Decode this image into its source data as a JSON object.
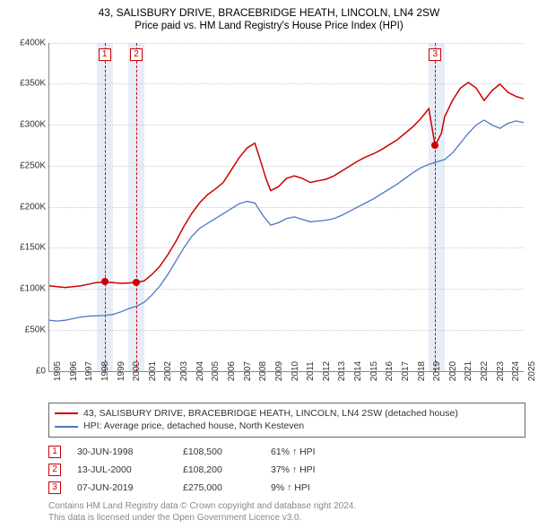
{
  "title": "43, SALISBURY DRIVE, BRACEBRIDGE HEATH, LINCOLN, LN4 2SW",
  "subtitle": "Price paid vs. HM Land Registry's House Price Index (HPI)",
  "chart": {
    "type": "line",
    "x_start_year": 1995,
    "x_end_year": 2025,
    "y_min": 0,
    "y_max": 400000,
    "y_tick_step": 50000,
    "y_tick_labels": [
      "£0",
      "£50K",
      "£100K",
      "£150K",
      "£200K",
      "£250K",
      "£300K",
      "£350K",
      "£400K"
    ],
    "x_tick_years": [
      1995,
      1996,
      1997,
      1998,
      1999,
      2000,
      2001,
      2002,
      2003,
      2004,
      2005,
      2006,
      2007,
      2008,
      2009,
      2010,
      2011,
      2012,
      2013,
      2014,
      2015,
      2016,
      2017,
      2018,
      2019,
      2020,
      2021,
      2022,
      2023,
      2024,
      2025
    ],
    "background_color": "#ffffff",
    "grid_color": "#cccccc",
    "axis_color": "#888888",
    "shade_color": "#e6edf7",
    "shades": [
      {
        "from_year": 1998,
        "to_year": 1999
      },
      {
        "from_year": 2000,
        "to_year": 2001
      },
      {
        "from_year": 2019,
        "to_year": 2020
      }
    ],
    "series": [
      {
        "id": "price_paid",
        "label": "43, SALISBURY DRIVE, BRACEBRIDGE HEATH, LINCOLN, LN4 2SW (detached house)",
        "color": "#cc0000",
        "line_width": 1.5,
        "values": [
          [
            1995.0,
            104000
          ],
          [
            1995.5,
            103000
          ],
          [
            1996.0,
            102000
          ],
          [
            1996.5,
            103000
          ],
          [
            1997.0,
            104000
          ],
          [
            1997.5,
            106000
          ],
          [
            1998.0,
            108000
          ],
          [
            1998.5,
            108500
          ],
          [
            1999.0,
            108000
          ],
          [
            1999.5,
            107000
          ],
          [
            2000.0,
            107500
          ],
          [
            2000.5,
            108200
          ],
          [
            2001.0,
            110000
          ],
          [
            2001.5,
            118000
          ],
          [
            2002.0,
            128000
          ],
          [
            2002.5,
            142000
          ],
          [
            2003.0,
            158000
          ],
          [
            2003.5,
            176000
          ],
          [
            2004.0,
            192000
          ],
          [
            2004.5,
            205000
          ],
          [
            2005.0,
            215000
          ],
          [
            2005.5,
            222000
          ],
          [
            2006.0,
            230000
          ],
          [
            2006.5,
            245000
          ],
          [
            2007.0,
            260000
          ],
          [
            2007.5,
            272000
          ],
          [
            2008.0,
            278000
          ],
          [
            2008.3,
            260000
          ],
          [
            2008.7,
            235000
          ],
          [
            2009.0,
            220000
          ],
          [
            2009.5,
            225000
          ],
          [
            2010.0,
            235000
          ],
          [
            2010.5,
            238000
          ],
          [
            2011.0,
            235000
          ],
          [
            2011.5,
            230000
          ],
          [
            2012.0,
            232000
          ],
          [
            2012.5,
            234000
          ],
          [
            2013.0,
            238000
          ],
          [
            2013.5,
            244000
          ],
          [
            2014.0,
            250000
          ],
          [
            2014.5,
            256000
          ],
          [
            2015.0,
            261000
          ],
          [
            2015.5,
            265000
          ],
          [
            2016.0,
            270000
          ],
          [
            2016.5,
            276000
          ],
          [
            2017.0,
            282000
          ],
          [
            2017.5,
            290000
          ],
          [
            2018.0,
            298000
          ],
          [
            2018.5,
            308000
          ],
          [
            2019.0,
            320000
          ],
          [
            2019.4,
            275000
          ],
          [
            2019.8,
            290000
          ],
          [
            2020.0,
            310000
          ],
          [
            2020.5,
            330000
          ],
          [
            2021.0,
            345000
          ],
          [
            2021.5,
            352000
          ],
          [
            2022.0,
            345000
          ],
          [
            2022.5,
            330000
          ],
          [
            2023.0,
            342000
          ],
          [
            2023.5,
            350000
          ],
          [
            2024.0,
            340000
          ],
          [
            2024.5,
            335000
          ],
          [
            2025.0,
            332000
          ]
        ]
      },
      {
        "id": "hpi",
        "label": "HPI: Average price, detached house, North Kesteven",
        "color": "#4a78c4",
        "line_width": 1.3,
        "values": [
          [
            1995.0,
            62000
          ],
          [
            1995.5,
            61000
          ],
          [
            1996.0,
            62000
          ],
          [
            1996.5,
            64000
          ],
          [
            1997.0,
            66000
          ],
          [
            1997.5,
            67000
          ],
          [
            1998.0,
            67500
          ],
          [
            1998.5,
            68000
          ],
          [
            1999.0,
            69000
          ],
          [
            1999.5,
            72000
          ],
          [
            2000.0,
            76000
          ],
          [
            2000.5,
            79000
          ],
          [
            2001.0,
            84000
          ],
          [
            2001.5,
            93000
          ],
          [
            2002.0,
            104000
          ],
          [
            2002.5,
            118000
          ],
          [
            2003.0,
            134000
          ],
          [
            2003.5,
            150000
          ],
          [
            2004.0,
            164000
          ],
          [
            2004.5,
            174000
          ],
          [
            2005.0,
            180000
          ],
          [
            2005.5,
            186000
          ],
          [
            2006.0,
            192000
          ],
          [
            2006.5,
            198000
          ],
          [
            2007.0,
            204000
          ],
          [
            2007.5,
            207000
          ],
          [
            2008.0,
            205000
          ],
          [
            2008.5,
            190000
          ],
          [
            2009.0,
            178000
          ],
          [
            2009.5,
            181000
          ],
          [
            2010.0,
            186000
          ],
          [
            2010.5,
            188000
          ],
          [
            2011.0,
            185000
          ],
          [
            2011.5,
            182000
          ],
          [
            2012.0,
            183000
          ],
          [
            2012.5,
            184000
          ],
          [
            2013.0,
            186000
          ],
          [
            2013.5,
            190000
          ],
          [
            2014.0,
            195000
          ],
          [
            2014.5,
            200000
          ],
          [
            2015.0,
            205000
          ],
          [
            2015.5,
            210000
          ],
          [
            2016.0,
            216000
          ],
          [
            2016.5,
            222000
          ],
          [
            2017.0,
            228000
          ],
          [
            2017.5,
            235000
          ],
          [
            2018.0,
            242000
          ],
          [
            2018.5,
            248000
          ],
          [
            2019.0,
            252000
          ],
          [
            2019.5,
            255000
          ],
          [
            2020.0,
            258000
          ],
          [
            2020.5,
            266000
          ],
          [
            2021.0,
            278000
          ],
          [
            2021.5,
            290000
          ],
          [
            2022.0,
            300000
          ],
          [
            2022.5,
            306000
          ],
          [
            2023.0,
            300000
          ],
          [
            2023.5,
            296000
          ],
          [
            2024.0,
            302000
          ],
          [
            2024.5,
            305000
          ],
          [
            2025.0,
            303000
          ]
        ]
      }
    ],
    "markers": [
      {
        "n": "1",
        "year": 1998.5,
        "price": 108500,
        "color": "#cc0000"
      },
      {
        "n": "2",
        "year": 2000.5,
        "price": 108200,
        "color": "#cc0000"
      },
      {
        "n": "3",
        "year": 2019.4,
        "price": 275000,
        "color": "#cc0000"
      }
    ]
  },
  "legend": {
    "items": [
      {
        "color": "#cc0000",
        "text": "43, SALISBURY DRIVE, BRACEBRIDGE HEATH, LINCOLN, LN4 2SW (detached house)"
      },
      {
        "color": "#4a78c4",
        "text": "HPI: Average price, detached house, North Kesteven"
      }
    ]
  },
  "sales": [
    {
      "n": "1",
      "color": "#cc0000",
      "date": "30-JUN-1998",
      "price": "£108,500",
      "pct": "61% ↑ HPI"
    },
    {
      "n": "2",
      "color": "#cc0000",
      "date": "13-JUL-2000",
      "price": "£108,200",
      "pct": "37% ↑ HPI"
    },
    {
      "n": "3",
      "color": "#cc0000",
      "date": "07-JUN-2019",
      "price": "£275,000",
      "pct": "9% ↑ HPI"
    }
  ],
  "attribution": {
    "line1": "Contains HM Land Registry data © Crown copyright and database right 2024.",
    "line2": "This data is licensed under the Open Government Licence v3.0."
  }
}
